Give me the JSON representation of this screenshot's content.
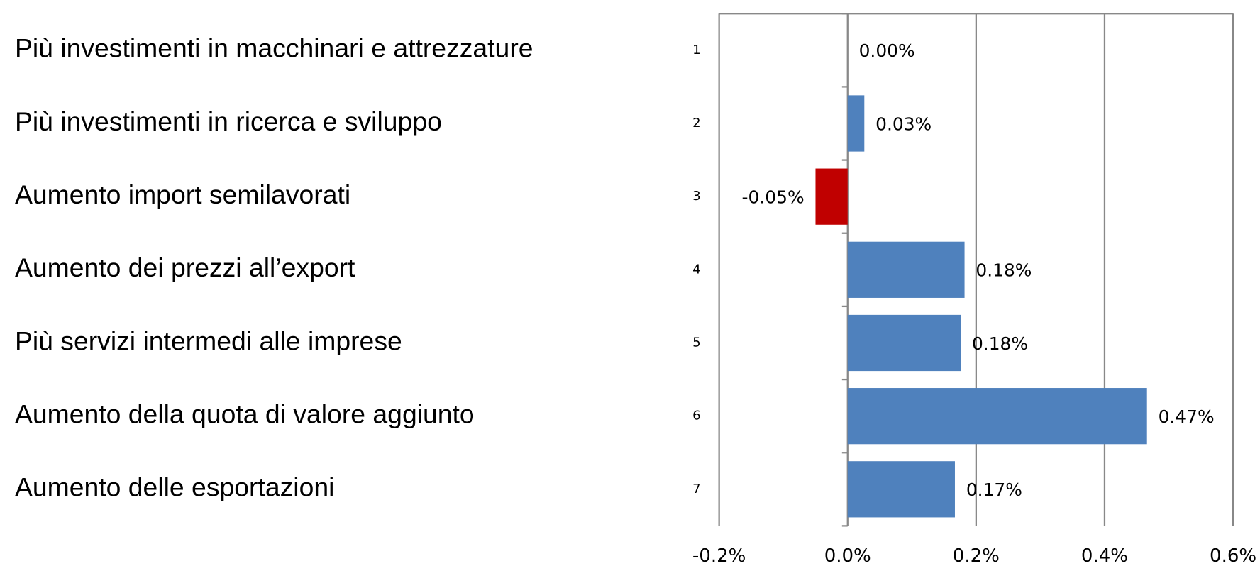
{
  "chart_data": {
    "type": "bar",
    "orientation": "horizontal",
    "categories": [
      "1",
      "2",
      "3",
      "4",
      "5",
      "6",
      "7"
    ],
    "descriptions": [
      "Più investimenti in macchinari e attrezzature",
      "Più investimenti in ricerca e sviluppo",
      "Aumento import semilavorati",
      "Aumento dei prezzi all’export",
      "Più servizi intermedi alle imprese",
      "Aumento della quota di valore aggiunto",
      "Aumento delle esportazioni"
    ],
    "values": [
      0.0,
      0.026,
      -0.05,
      0.182,
      0.176,
      0.466,
      0.167
    ],
    "value_labels": [
      "0.00%",
      "0.03%",
      "-0.05%",
      "0.18%",
      "0.18%",
      "0.47%",
      "0.17%"
    ],
    "colors": [
      "#4f81bd",
      "#4f81bd",
      "#c00000",
      "#4f81bd",
      "#4f81bd",
      "#4f81bd",
      "#4f81bd"
    ],
    "xlim": [
      -0.2,
      0.6
    ],
    "xticks": [
      {
        "value": -0.2,
        "label": "-0.2%"
      },
      {
        "value": 0.0,
        "label": "0.0%"
      },
      {
        "value": 0.2,
        "label": "0.2%"
      },
      {
        "value": 0.4,
        "label": "0.4%"
      },
      {
        "value": 0.6,
        "label": "0.6%"
      }
    ],
    "grid": true
  }
}
